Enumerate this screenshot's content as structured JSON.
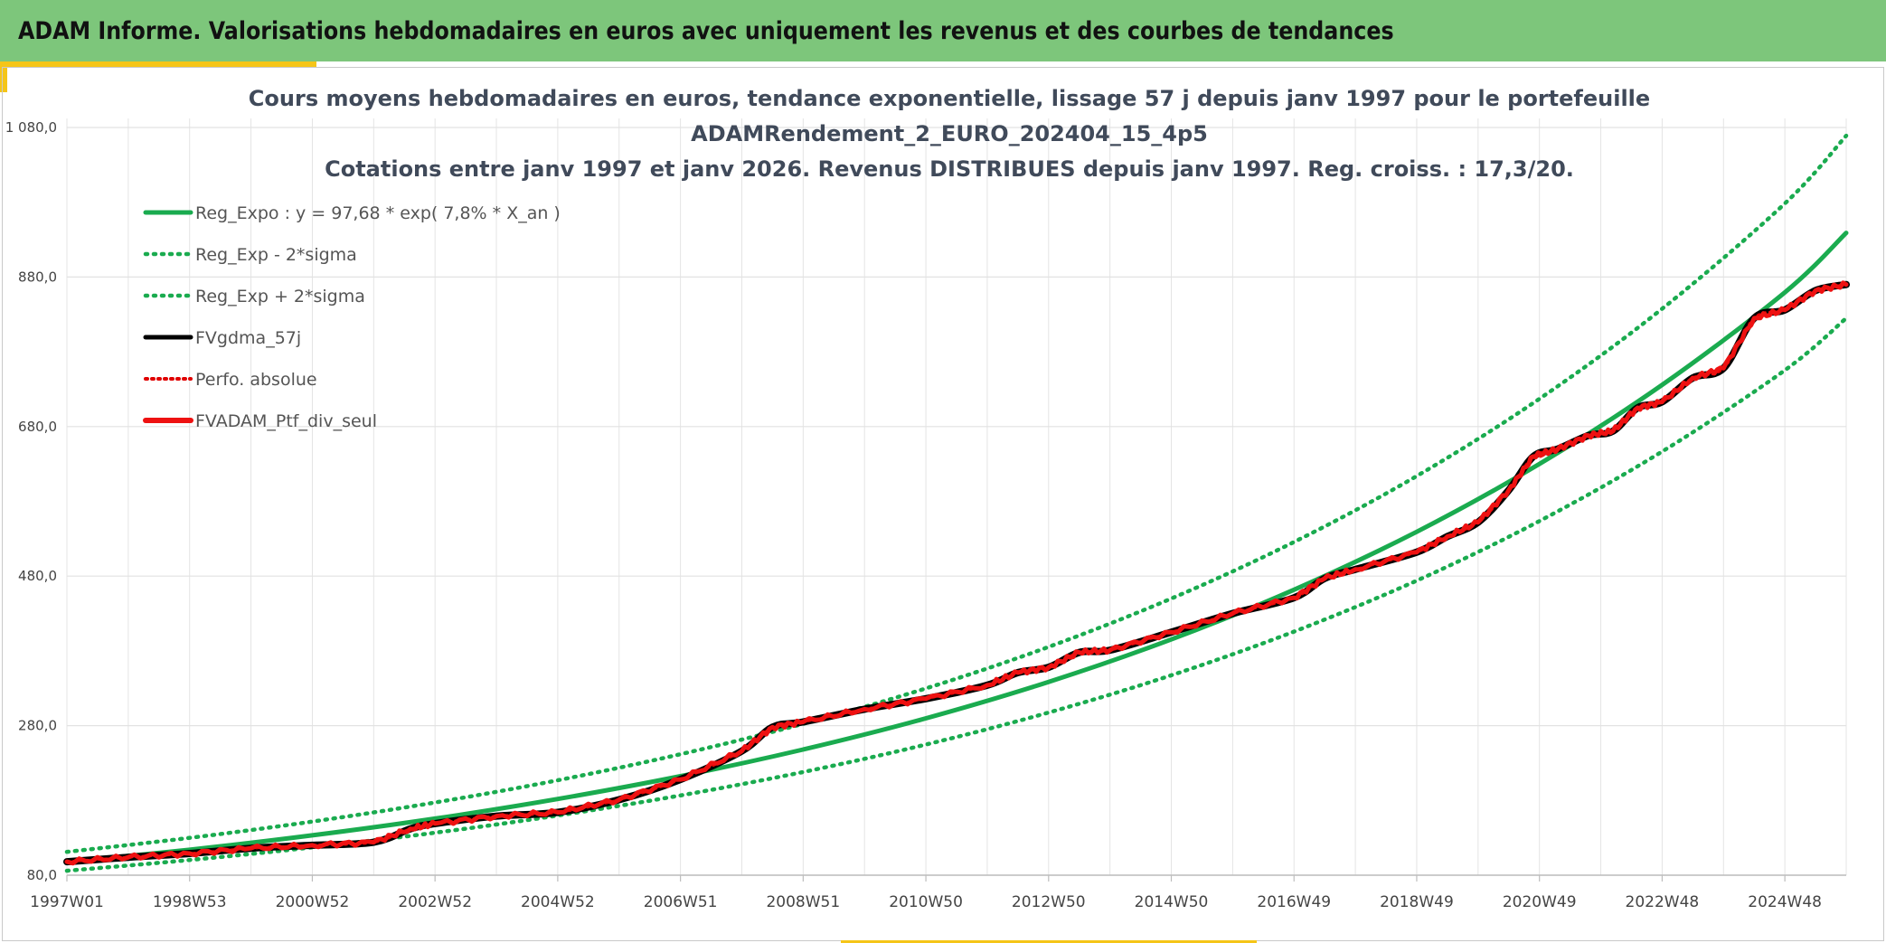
{
  "header": {
    "title": "ADAM Informe. Valorisations hebdomadaires en euros avec uniquement les revenus et des courbes de tendances"
  },
  "chart_data": {
    "type": "line",
    "title_lines": [
      "Cours moyens hebdomadaires en euros, tendance exponentielle, lissage 57 j depuis janv 1997 pour le portefeuille",
      "ADAMRendement_2_EURO_202404_15_4p5",
      "Cotations entre janv 1997 et janv 2026. Revenus DISTRIBUES depuis janv 1997. Reg. croiss. : 17,3/20."
    ],
    "xlabel": "",
    "ylabel": "",
    "xlim": [
      1997.0,
      2026.0
    ],
    "ylim": [
      80,
      1080
    ],
    "y_ticks": [
      "80,0",
      "280,0",
      "480,0",
      "680,0",
      "880,0",
      "1 080,0"
    ],
    "y_tick_values": [
      80,
      280,
      480,
      680,
      880,
      1080
    ],
    "x_tick_labels": [
      "1997W01",
      "1998W53",
      "2000W52",
      "2002W52",
      "2004W52",
      "2006W51",
      "2008W51",
      "2010W50",
      "2012W50",
      "2014W50",
      "2016W49",
      "2018W49",
      "2020W49",
      "2022W48",
      "2024W48"
    ],
    "x_tick_values": [
      1997.0,
      1999.0,
      2001.0,
      2003.0,
      2005.0,
      2007.0,
      2009.0,
      2011.0,
      2013.0,
      2015.0,
      2017.0,
      2019.0,
      2021.0,
      2023.0,
      2025.0
    ],
    "grid": true,
    "legend_position": "top-left",
    "series": [
      {
        "name": "Reg_Expo : y = 97,68 * exp( 7,8% *  X_an )",
        "color": "#1aab4f",
        "style": "solid",
        "x": [
          1997,
          1999,
          2001,
          2003,
          2005,
          2007,
          2009,
          2011,
          2013,
          2015,
          2017,
          2019,
          2021,
          2023,
          2025,
          2026
        ],
        "y": [
          97.7,
          114.1,
          133.3,
          155.7,
          181.9,
          212.4,
          248.1,
          289.8,
          338.5,
          395.4,
          461.8,
          539.3,
          630.0,
          735.8,
          859.4,
          939.0
        ]
      },
      {
        "name": "Reg_Exp - 2*sigma",
        "color": "#1aab4f",
        "style": "dotted",
        "x": [
          1997,
          1999,
          2001,
          2003,
          2005,
          2007,
          2009,
          2011,
          2013,
          2015,
          2017,
          2019,
          2021,
          2023,
          2025,
          2026
        ],
        "y": [
          85.9,
          100.3,
          117.2,
          136.8,
          159.8,
          186.7,
          218.0,
          254.7,
          297.5,
          347.4,
          405.8,
          474.0,
          553.6,
          646.6,
          755.3,
          825.0
        ]
      },
      {
        "name": "Reg_Exp + 2*sigma",
        "color": "#1aab4f",
        "style": "dotted",
        "x": [
          1997,
          1999,
          2001,
          2003,
          2005,
          2007,
          2009,
          2011,
          2013,
          2015,
          2017,
          2019,
          2021,
          2023,
          2025,
          2026
        ],
        "y": [
          111.2,
          129.9,
          151.7,
          177.2,
          207.0,
          241.8,
          282.4,
          329.8,
          385.3,
          450.0,
          525.6,
          613.9,
          717.1,
          837.6,
          978.3,
          1069.0
        ]
      },
      {
        "name": "FVgdma_57j",
        "color": "#000000",
        "style": "solid",
        "x": [
          1997.0,
          1998.0,
          1999.0,
          2000.0,
          2001.0,
          2002.0,
          2002.6,
          2003.0,
          2004.0,
          2005.0,
          2006.0,
          2007.0,
          2008.0,
          2008.5,
          2009.0,
          2010.0,
          2011.0,
          2012.0,
          2012.5,
          2013.0,
          2013.5,
          2014.0,
          2015.0,
          2016.0,
          2017.0,
          2017.5,
          2018.0,
          2019.0,
          2019.5,
          2020.0,
          2020.5,
          2020.9,
          2021.3,
          2021.8,
          2022.2,
          2022.6,
          2023.0,
          2023.5,
          2024.0,
          2024.5,
          2025.0,
          2025.5,
          2026.0
        ],
        "y": [
          98,
          104,
          109,
          116,
          120,
          124,
          142,
          149,
          159,
          164,
          181,
          208,
          246,
          278,
          285,
          302,
          316,
          334,
          351,
          358,
          378,
          381,
          405,
          430,
          451,
          477,
          489,
          512,
          533,
          552,
          595,
          640,
          650,
          668,
          674,
          705,
          713,
          745,
          758,
          825,
          836,
          862,
          870
        ]
      },
      {
        "name": "Perfo. absolue",
        "color": "#e00000",
        "style": "dotted",
        "x": [
          1997.0,
          1998.0,
          1999.0,
          2000.0,
          2001.0,
          2002.0,
          2002.6,
          2003.0,
          2004.0,
          2005.0,
          2006.0,
          2007.0,
          2008.0,
          2008.5,
          2009.0,
          2010.0,
          2011.0,
          2012.0,
          2012.5,
          2013.0,
          2013.5,
          2014.0,
          2015.0,
          2016.0,
          2017.0,
          2017.5,
          2018.0,
          2019.0,
          2019.5,
          2020.0,
          2020.5,
          2020.9,
          2021.3,
          2021.8,
          2022.2,
          2022.6,
          2023.0,
          2023.5,
          2024.0,
          2024.5,
          2025.0,
          2025.5,
          2026.0
        ],
        "y": [
          98,
          104,
          109,
          116,
          120,
          124,
          142,
          149,
          159,
          164,
          181,
          208,
          246,
          278,
          285,
          302,
          316,
          334,
          351,
          358,
          378,
          381,
          405,
          430,
          451,
          477,
          489,
          512,
          533,
          552,
          595,
          640,
          650,
          668,
          674,
          705,
          713,
          745,
          758,
          825,
          836,
          862,
          870
        ]
      },
      {
        "name": "FVADAM_Ptf_div_seul",
        "color": "#ee1111",
        "style": "solid",
        "x": [
          1997.0,
          1998.0,
          1999.0,
          2000.0,
          2001.0,
          2002.0,
          2002.6,
          2003.0,
          2004.0,
          2005.0,
          2006.0,
          2007.0,
          2008.0,
          2008.5,
          2009.0,
          2010.0,
          2011.0,
          2012.0,
          2012.5,
          2013.0,
          2013.5,
          2014.0,
          2015.0,
          2016.0,
          2017.0,
          2017.5,
          2018.0,
          2019.0,
          2019.5,
          2020.0,
          2020.5,
          2020.9,
          2021.3,
          2021.8,
          2022.2,
          2022.6,
          2023.0,
          2023.5,
          2024.0,
          2024.5,
          2025.0,
          2025.5,
          2026.0
        ],
        "y": [
          98,
          104,
          109,
          116,
          120,
          124,
          142,
          149,
          159,
          164,
          181,
          208,
          246,
          278,
          285,
          302,
          316,
          334,
          351,
          358,
          378,
          381,
          405,
          430,
          451,
          477,
          489,
          512,
          533,
          552,
          595,
          640,
          650,
          668,
          674,
          705,
          713,
          745,
          758,
          825,
          836,
          862,
          870
        ]
      }
    ]
  }
}
